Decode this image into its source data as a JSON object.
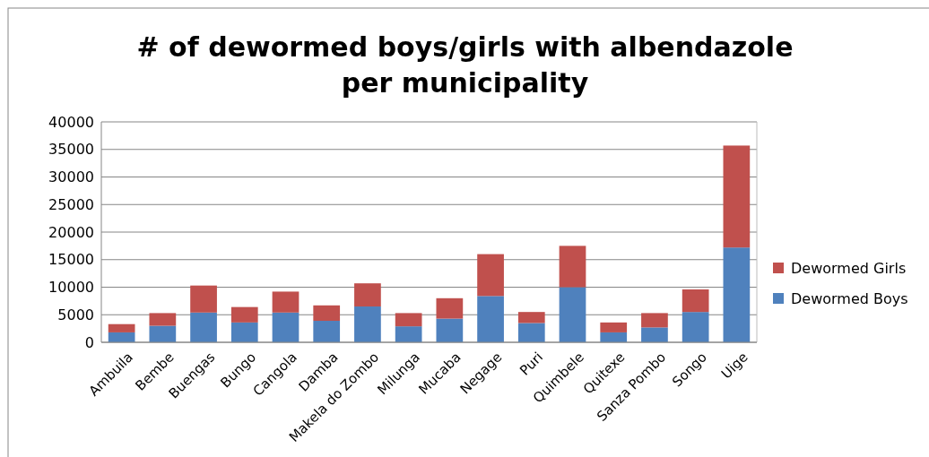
{
  "chart_data": {
    "type": "bar",
    "title": "# of dewormed boys/girls with albendazole per municipality",
    "categories": [
      "Ambuila",
      "Bembe",
      "Buengas",
      "Bungo",
      "Cangola",
      "Damba",
      "Makela do Zombo",
      "Milunga",
      "Mucaba",
      "Negage",
      "Puri",
      "Quimbele",
      "Quitexe",
      "Sanza Pombo",
      "Songo",
      "Uige"
    ],
    "stacked": true,
    "series": [
      {
        "name": "Dewormed Boys",
        "color": "#4f81bd",
        "values": [
          1800,
          3000,
          5400,
          3600,
          5400,
          3900,
          6500,
          2900,
          4300,
          8400,
          3500,
          10000,
          1800,
          2700,
          5500,
          17200
        ]
      },
      {
        "name": "Dewormed Girls",
        "color": "#c0504d",
        "values": [
          1500,
          2300,
          4900,
          2800,
          3800,
          2800,
          4200,
          2400,
          3700,
          7600,
          2000,
          7500,
          1800,
          2600,
          4100,
          18500
        ]
      }
    ],
    "ylim": [
      0,
      40000
    ],
    "yticks": [
      0,
      5000,
      10000,
      15000,
      20000,
      25000,
      30000,
      35000,
      40000
    ],
    "grid": "y",
    "legend": "right"
  }
}
